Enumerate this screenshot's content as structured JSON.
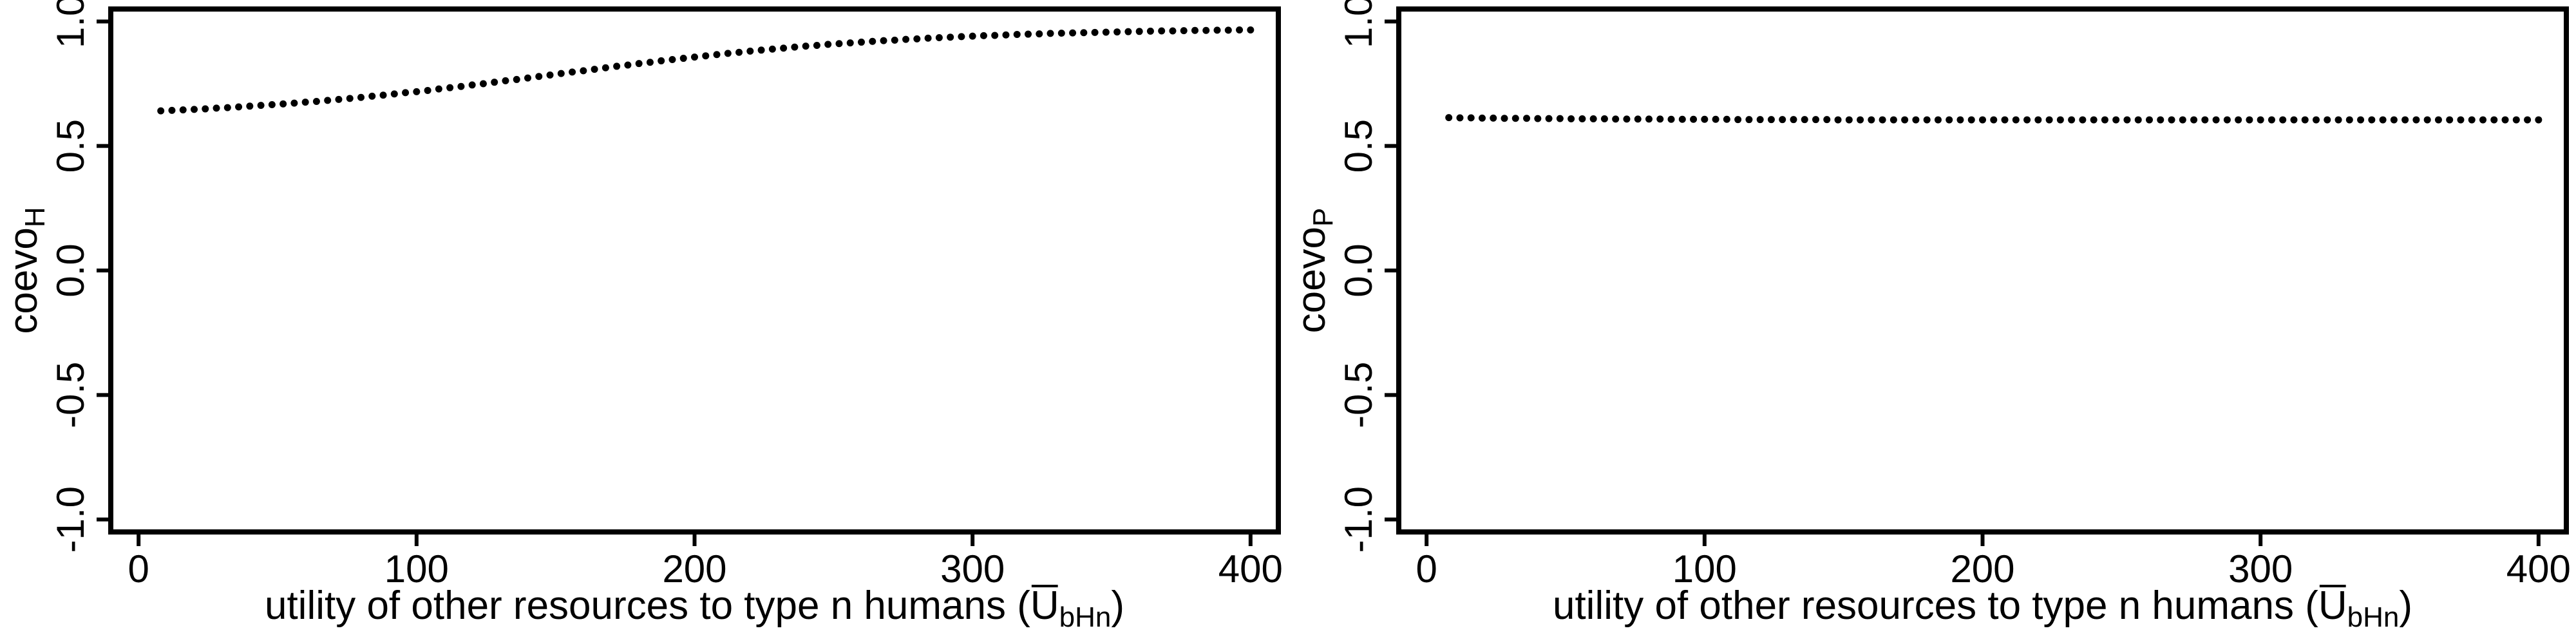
{
  "colors": {
    "background": "#ffffff",
    "axis": "#000000",
    "points": "#000000"
  },
  "chart_data": [
    {
      "type": "scatter",
      "title": "",
      "xlabel": "utility of other resources to type n humans (U",
      "xlabel_sub": "bHn",
      "xlabel_close": ")",
      "xlabel_overline": true,
      "ylabel": "coevo",
      "ylabel_sub": "H",
      "xlim": [
        -10,
        410
      ],
      "ylim": [
        -1.05,
        1.05
      ],
      "x_ticks": [
        0,
        100,
        200,
        300,
        400
      ],
      "x_tick_labels": [
        "0",
        "100",
        "200",
        "300",
        "400"
      ],
      "y_ticks": [
        -1.0,
        -0.5,
        0.0,
        0.5,
        1.0
      ],
      "y_tick_labels": [
        "-1.0",
        "-0.5",
        "0.0",
        "0.5",
        "1.0"
      ],
      "grid": false,
      "legend": "none",
      "series": [
        {
          "x": [
            8,
            12,
            16,
            20,
            24,
            28,
            32,
            36,
            40,
            44,
            48,
            52,
            56,
            60,
            64,
            68,
            72,
            76,
            80,
            84,
            88,
            92,
            96,
            100,
            104,
            108,
            112,
            116,
            120,
            124,
            128,
            132,
            136,
            140,
            144,
            148,
            152,
            156,
            160,
            164,
            168,
            172,
            176,
            180,
            184,
            188,
            192,
            196,
            200,
            204,
            208,
            212,
            216,
            220,
            224,
            228,
            232,
            236,
            240,
            244,
            248,
            252,
            256,
            260,
            264,
            268,
            272,
            276,
            280,
            284,
            288,
            292,
            296,
            300,
            304,
            308,
            312,
            316,
            320,
            324,
            328,
            332,
            336,
            340,
            344,
            348,
            352,
            356,
            360,
            364,
            368,
            372,
            376,
            380,
            384,
            388,
            392,
            396,
            400
          ],
          "y": [
            0.641,
            0.643,
            0.645,
            0.647,
            0.649,
            0.652,
            0.654,
            0.657,
            0.66,
            0.663,
            0.666,
            0.669,
            0.672,
            0.676,
            0.679,
            0.683,
            0.687,
            0.691,
            0.695,
            0.7,
            0.704,
            0.709,
            0.714,
            0.718,
            0.723,
            0.729,
            0.734,
            0.739,
            0.745,
            0.75,
            0.756,
            0.762,
            0.767,
            0.773,
            0.779,
            0.785,
            0.791,
            0.797,
            0.802,
            0.808,
            0.814,
            0.82,
            0.825,
            0.831,
            0.836,
            0.842,
            0.847,
            0.852,
            0.857,
            0.862,
            0.867,
            0.872,
            0.876,
            0.881,
            0.885,
            0.889,
            0.893,
            0.897,
            0.901,
            0.904,
            0.908,
            0.911,
            0.914,
            0.917,
            0.92,
            0.923,
            0.925,
            0.928,
            0.93,
            0.933,
            0.935,
            0.937,
            0.939,
            0.941,
            0.943,
            0.944,
            0.946,
            0.948,
            0.949,
            0.95,
            0.952,
            0.953,
            0.954,
            0.955,
            0.956,
            0.957,
            0.958,
            0.959,
            0.96,
            0.961,
            0.962,
            0.962,
            0.963,
            0.964,
            0.964,
            0.965,
            0.965,
            0.966,
            0.966
          ]
        }
      ]
    },
    {
      "type": "scatter",
      "title": "",
      "xlabel": "utility of other resources to type n humans (U",
      "xlabel_sub": "bHn",
      "xlabel_close": ")",
      "xlabel_overline": true,
      "ylabel": "coevo",
      "ylabel_sub": "P",
      "xlim": [
        -10,
        410
      ],
      "ylim": [
        -1.05,
        1.05
      ],
      "x_ticks": [
        0,
        100,
        200,
        300,
        400
      ],
      "x_tick_labels": [
        "0",
        "100",
        "200",
        "300",
        "400"
      ],
      "y_ticks": [
        -1.0,
        -0.5,
        0.0,
        0.5,
        1.0
      ],
      "y_tick_labels": [
        "-1.0",
        "-0.5",
        "0.0",
        "0.5",
        "1.0"
      ],
      "grid": false,
      "legend": "none",
      "series": [
        {
          "x": [
            8,
            12,
            16,
            20,
            24,
            28,
            32,
            36,
            40,
            44,
            48,
            52,
            56,
            60,
            64,
            68,
            72,
            76,
            80,
            84,
            88,
            92,
            96,
            100,
            104,
            108,
            112,
            116,
            120,
            124,
            128,
            132,
            136,
            140,
            144,
            148,
            152,
            156,
            160,
            164,
            168,
            172,
            176,
            180,
            184,
            188,
            192,
            196,
            200,
            204,
            208,
            212,
            216,
            220,
            224,
            228,
            232,
            236,
            240,
            244,
            248,
            252,
            256,
            260,
            264,
            268,
            272,
            276,
            280,
            284,
            288,
            292,
            296,
            300,
            304,
            308,
            312,
            316,
            320,
            324,
            328,
            332,
            336,
            340,
            344,
            348,
            352,
            356,
            360,
            364,
            368,
            372,
            376,
            380,
            384,
            388,
            392,
            396,
            400
          ],
          "y": [
            0.614,
            0.613,
            0.613,
            0.612,
            0.612,
            0.611,
            0.611,
            0.611,
            0.61,
            0.61,
            0.61,
            0.609,
            0.609,
            0.609,
            0.609,
            0.608,
            0.608,
            0.608,
            0.608,
            0.608,
            0.607,
            0.607,
            0.607,
            0.607,
            0.607,
            0.607,
            0.606,
            0.606,
            0.606,
            0.606,
            0.606,
            0.606,
            0.606,
            0.606,
            0.606,
            0.605,
            0.605,
            0.605,
            0.605,
            0.605,
            0.605,
            0.605,
            0.605,
            0.605,
            0.605,
            0.605,
            0.605,
            0.605,
            0.605,
            0.605,
            0.605,
            0.605,
            0.605,
            0.605,
            0.605,
            0.605,
            0.605,
            0.605,
            0.605,
            0.605,
            0.605,
            0.605,
            0.605,
            0.605,
            0.605,
            0.605,
            0.605,
            0.605,
            0.605,
            0.605,
            0.605,
            0.605,
            0.605,
            0.605,
            0.605,
            0.605,
            0.605,
            0.605,
            0.605,
            0.605,
            0.605,
            0.605,
            0.605,
            0.605,
            0.605,
            0.605,
            0.605,
            0.605,
            0.605,
            0.605,
            0.605,
            0.605,
            0.605,
            0.605,
            0.605,
            0.605,
            0.605,
            0.605,
            0.605
          ]
        }
      ]
    }
  ]
}
